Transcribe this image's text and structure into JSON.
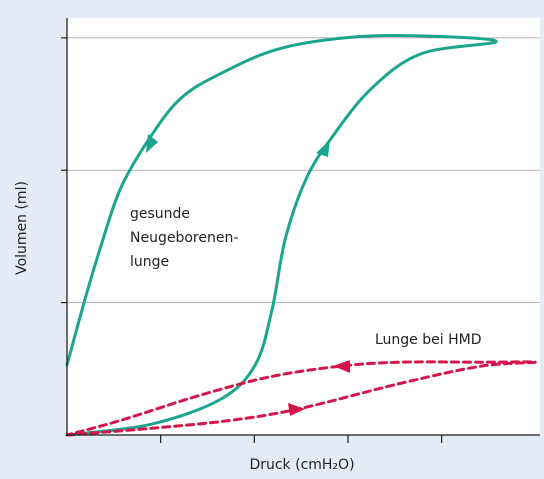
{
  "chart_data": {
    "type": "line",
    "xlabel": "Druck (cmH₂O)",
    "ylabel": "Volumen (ml)",
    "annotations": [
      "gesunde",
      "Neugeborenen-",
      "lunge",
      "Lunge bei HMD"
    ],
    "xlim": [
      0,
      5.05
    ],
    "ylim": [
      0,
      3.15
    ],
    "xticks": [
      1,
      2,
      3,
      4
    ],
    "yticks": [
      1,
      2,
      3
    ],
    "grid": true,
    "series": [
      {
        "color": "#1ba58c",
        "dashed": false,
        "x": [
          0,
          0.89,
          1.64,
          2.01,
          2.19,
          2.33,
          2.55,
          2.81,
          3.24,
          3.78,
          4.58,
          3.99,
          3.13,
          2.28,
          1.64,
          1.21,
          0.87,
          0.57,
          0.35,
          0.19,
          0
        ],
        "values": [
          0,
          0.08,
          0.27,
          0.53,
          0.95,
          1.48,
          1.93,
          2.23,
          2.61,
          2.88,
          2.97,
          3.01,
          3.01,
          2.92,
          2.73,
          2.54,
          2.23,
          1.86,
          1.4,
          1.02,
          0.53
        ]
      },
      {
        "color": "#d3174d",
        "dashed": true,
        "x": [
          0,
          0.89,
          1.74,
          2.49,
          3.56,
          4.42,
          5.0,
          4.42,
          3.56,
          2.92,
          2.17,
          1.42,
          0.57,
          0
        ],
        "values": [
          0,
          0.05,
          0.11,
          0.2,
          0.39,
          0.52,
          0.55,
          0.55,
          0.55,
          0.52,
          0.44,
          0.3,
          0.11,
          0
        ]
      }
    ]
  }
}
